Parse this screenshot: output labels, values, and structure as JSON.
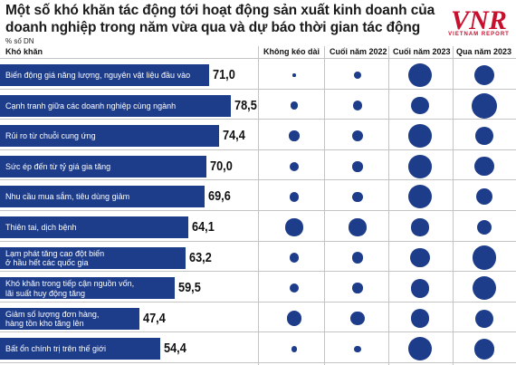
{
  "title": "Một số khó khăn tác động tới hoạt động sản xuất kinh doanh của doanh nghiệp trong năm vừa qua và dự báo thời gian tác động",
  "unit": "% số DN",
  "logo": {
    "text": "VNR",
    "subtitle": "VIETNAM REPORT",
    "color": "#c8102e"
  },
  "colors": {
    "bar": "#1d3c8a",
    "dot": "#1d3c8a"
  },
  "columns": {
    "category": "Khó khăn",
    "c1": "Không kéo dài",
    "c2": "Cuối năm 2022",
    "c3": "Cuối năm 2023",
    "c4": "Qua năm 2023"
  },
  "chart_data": {
    "type": "bar",
    "orientation": "horizontal",
    "xlim": [
      0,
      100
    ],
    "categories": [
      "Biến động giá năng lượng, nguyên vật liệu đầu vào",
      "Cạnh tranh giữa các doanh nghiệp cùng ngành",
      "Rủi ro từ chuỗi cung ứng",
      "Sức ép đến từ tỷ giá gia tăng",
      "Nhu cầu mua sắm, tiêu dùng giảm",
      "Thiên tai, dịch bệnh",
      "Lạm phát tăng cao đột biến ở hầu hết các quốc gia",
      "Khó khăn trong tiếp cận nguồn vốn, lãi suất huy động tăng",
      "Giảm số lượng đơn hàng, hàng tồn kho tăng lên",
      "Bất ổn chính trị trên thế giới"
    ],
    "label_lines": [
      [
        "Biến động giá năng lượng, nguyên vật liệu đầu vào"
      ],
      [
        "Cạnh tranh giữa các doanh nghiệp cùng ngành"
      ],
      [
        "Rủi ro từ chuỗi cung ứng"
      ],
      [
        "Sức ép đến từ tỷ giá gia tăng"
      ],
      [
        "Nhu cầu mua sắm, tiêu dùng giảm"
      ],
      [
        "Thiên tai, dịch bệnh"
      ],
      [
        "Lạm phát tăng cao đột biến",
        "ở hầu hết các quốc gia"
      ],
      [
        "Khó khăn trong tiếp cận nguồn vốn,",
        "lãi suất huy động tăng"
      ],
      [
        "Giảm số lượng đơn hàng,",
        "hàng tồn kho tăng lên"
      ],
      [
        "Bất ổn chính trị trên thế giới"
      ]
    ],
    "values": [
      71.0,
      78.5,
      74.4,
      70.0,
      69.6,
      64.1,
      63.2,
      59.5,
      47.4,
      54.4
    ],
    "value_labels": [
      "71,0",
      "78,5",
      "74,4",
      "70,0",
      "69,6",
      "64,1",
      "63,2",
      "59,5",
      "47,4",
      "54,4"
    ],
    "bubble_series": [
      {
        "name": "Không kéo dài",
        "values": [
          1,
          6,
          10,
          8,
          8,
          28,
          8,
          8,
          22,
          3
        ]
      },
      {
        "name": "Cuối năm 2022",
        "values": [
          5,
          9,
          12,
          10,
          10,
          28,
          12,
          10,
          18,
          4
        ]
      },
      {
        "name": "Cuối năm 2023",
        "values": [
          52,
          28,
          50,
          50,
          52,
          28,
          35,
          33,
          33,
          52
        ]
      },
      {
        "name": "Qua năm 2023",
        "values": [
          40,
          60,
          30,
          35,
          25,
          22,
          55,
          52,
          32,
          40
        ]
      }
    ]
  }
}
